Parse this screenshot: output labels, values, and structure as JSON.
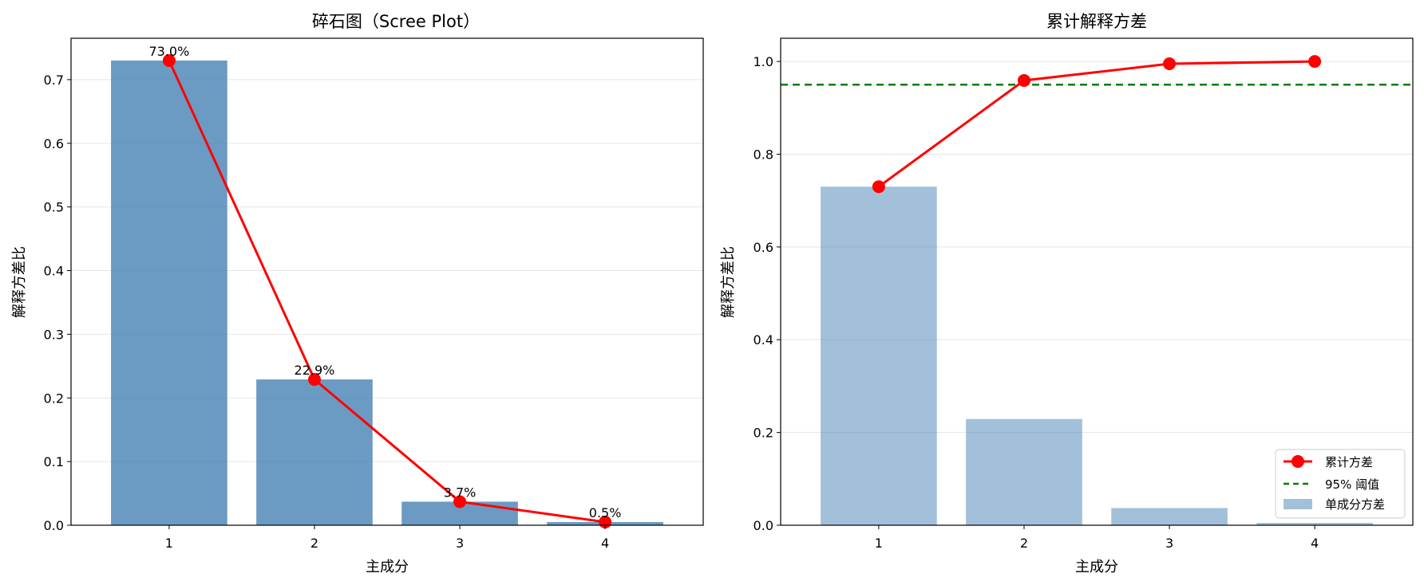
{
  "chart_data": [
    {
      "type": "bar",
      "title": "碎石图（Scree Plot）",
      "xlabel": "主成分",
      "ylabel": "解释方差比",
      "categories": [
        "1",
        "2",
        "3",
        "4"
      ],
      "ylim": [
        0,
        0.765
      ],
      "yticks": [
        "0.0",
        "0.1",
        "0.2",
        "0.3",
        "0.4",
        "0.5",
        "0.6",
        "0.7"
      ],
      "grid": "y",
      "series": [
        {
          "kind": "bar",
          "values": [
            0.73,
            0.229,
            0.037,
            0.005
          ],
          "color": "#4682b4"
        },
        {
          "kind": "line",
          "values": [
            0.73,
            0.229,
            0.037,
            0.005
          ],
          "color": "#ff0000"
        }
      ],
      "data_labels": [
        "73.0%",
        "22.9%",
        "3.7%",
        "0.5%"
      ]
    },
    {
      "type": "bar",
      "title": "累计解释方差",
      "xlabel": "主成分",
      "ylabel": "解释方差比",
      "categories": [
        "1",
        "2",
        "3",
        "4"
      ],
      "ylim": [
        0,
        1.05
      ],
      "yticks": [
        "0.0",
        "0.2",
        "0.4",
        "0.6",
        "0.8",
        "1.0"
      ],
      "grid": "y",
      "threshold": {
        "value": 0.95,
        "name": "95% 阈值",
        "color": "#008000"
      },
      "series": [
        {
          "kind": "line",
          "name": "累计方差",
          "values": [
            0.73,
            0.959,
            0.995,
            1.0
          ],
          "color": "#ff0000"
        },
        {
          "kind": "bar",
          "name": "单成分方差",
          "values": [
            0.73,
            0.229,
            0.037,
            0.005
          ],
          "color": "#4682b4"
        }
      ],
      "legend_position": "lower right"
    }
  ]
}
